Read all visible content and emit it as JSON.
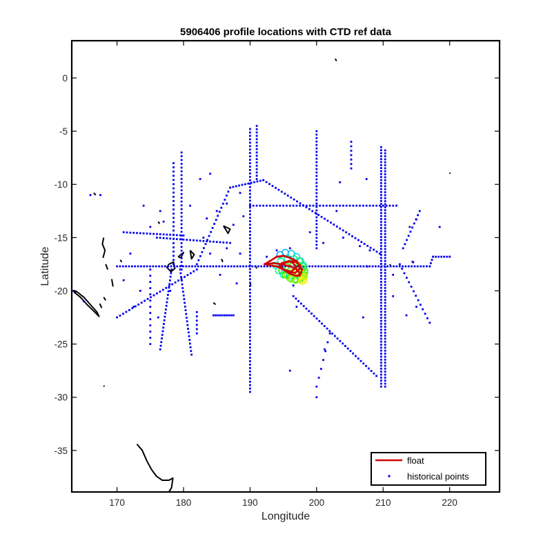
{
  "chart_data": {
    "type": "scatter",
    "title": "5906406 profile locations with CTD ref data",
    "xlabel": "Longitude",
    "ylabel": "Latitude",
    "xlim": [
      163.2,
      227.5
    ],
    "ylim": [
      -38.9,
      3.5
    ],
    "xticks": [
      "170",
      "180",
      "190",
      "200",
      "210",
      "220"
    ],
    "xtick_values": [
      170,
      180,
      190,
      200,
      210,
      220
    ],
    "yticks": [
      "0",
      "-5",
      "-10",
      "-15",
      "-20",
      "-25",
      "-30",
      "-35"
    ],
    "ytick_values": [
      0,
      -5,
      -10,
      -15,
      -20,
      -25,
      -30,
      -35
    ],
    "grid": false,
    "legend": {
      "placement": "bottom-right",
      "entries": [
        "float",
        "historical points"
      ]
    },
    "colors": {
      "float": "#d40000",
      "historical": "#0000ee",
      "coast": "#000000",
      "axes": "#000000"
    },
    "series": [
      {
        "name": "historical points",
        "segments": [
          {
            "from": [
              190,
              -4.8
            ],
            "to": [
              190,
              -29.5
            ],
            "step": 0.32
          },
          {
            "from": [
              191,
              -4.5
            ],
            "to": [
              191,
              -9.5
            ],
            "step": 0.32
          },
          {
            "from": [
              200,
              -5
            ],
            "to": [
              200,
              -16
            ],
            "step": 0.32
          },
          {
            "from": [
              209.7,
              -6.5
            ],
            "to": [
              209.7,
              -29
            ],
            "step": 0.28
          },
          {
            "from": [
              210.3,
              -6.8
            ],
            "to": [
              210.3,
              -29
            ],
            "step": 0.28
          },
          {
            "from": [
              179.7,
              -7
            ],
            "to": [
              179.7,
              -18
            ],
            "step": 0.35
          },
          {
            "from": [
              178.5,
              -8
            ],
            "to": [
              178.5,
              -17.5
            ],
            "step": 0.4
          },
          {
            "from": [
              170,
              -17.7
            ],
            "to": [
              217,
              -17.7
            ],
            "step": 0.45
          },
          {
            "from": [
              217,
              -17.7
            ],
            "to": [
              217.5,
              -16.8
            ],
            "step": 0.3
          },
          {
            "from": [
              217.5,
              -16.8
            ],
            "to": [
              220,
              -16.8
            ],
            "step": 0.4
          },
          {
            "from": [
              187,
              -10.3
            ],
            "to": [
              192,
              -9.6
            ],
            "step": 0.45
          },
          {
            "from": [
              192,
              -9.6
            ],
            "to": [
              209.5,
              -16.5
            ],
            "step": 0.5
          },
          {
            "from": [
              190,
              -12
            ],
            "to": [
              212,
              -12
            ],
            "step": 0.5
          },
          {
            "from": [
              182,
              -17.5
            ],
            "to": [
              187,
              -10.3
            ],
            "step": 0.45
          },
          {
            "from": [
              182,
              -18
            ],
            "to": [
              170,
              -22.5
            ],
            "step": 0.5
          },
          {
            "from": [
              178.2,
              -18
            ],
            "to": [
              176.5,
              -25.5
            ],
            "step": 0.35
          },
          {
            "from": [
              179.5,
              -18
            ],
            "to": [
              181.2,
              -26
            ],
            "step": 0.35
          },
          {
            "from": [
              196.5,
              -20.5
            ],
            "to": [
              209,
              -28
            ],
            "step": 0.45
          },
          {
            "from": [
              212.5,
              -17.5
            ],
            "to": [
              217,
              -23
            ],
            "step": 0.55
          },
          {
            "from": [
              175,
              -18
            ],
            "to": [
              175,
              -25
            ],
            "step": 0.6
          },
          {
            "from": [
              176,
              -15
            ],
            "to": [
              187,
              -15.5
            ],
            "step": 0.5
          },
          {
            "from": [
              171,
              -14.5
            ],
            "to": [
              180,
              -14.8
            ],
            "step": 0.5
          },
          {
            "from": [
              184.5,
              -22.3
            ],
            "to": [
              187.5,
              -22.3
            ],
            "step": 0.35
          },
          {
            "from": [
              182,
              -22
            ],
            "to": [
              182,
              -24
            ],
            "step": 0.4
          },
          {
            "from": [
              213,
              -16
            ],
            "to": [
              215.5,
              -12.5
            ],
            "step": 0.5
          },
          {
            "from": [
              205.2,
              -6
            ],
            "to": [
              205.2,
              -8.5
            ],
            "step": 0.4
          },
          {
            "from": [
              200,
              -29
            ],
            "to": [
              202,
              -24
            ],
            "step": 0.9
          }
        ],
        "points": [
          [
            166,
            -11
          ],
          [
            167.5,
            -11
          ],
          [
            163.5,
            -20
          ],
          [
            165,
            -21
          ],
          [
            171,
            -19
          ],
          [
            172,
            -16.5
          ],
          [
            173.5,
            -20
          ],
          [
            174,
            -12
          ],
          [
            175,
            -14
          ],
          [
            176.5,
            -12.5
          ],
          [
            177,
            -13.5
          ],
          [
            181,
            -12
          ],
          [
            183,
            -15
          ],
          [
            183.5,
            -13.2
          ],
          [
            184,
            -16.5
          ],
          [
            185,
            -12.5
          ],
          [
            185.5,
            -18.5
          ],
          [
            186.5,
            -16
          ],
          [
            187.5,
            -13.8
          ],
          [
            188.5,
            -16.5
          ],
          [
            189,
            -13
          ],
          [
            188,
            -19.3
          ],
          [
            192.5,
            -16.8
          ],
          [
            194,
            -16.2
          ],
          [
            196,
            -16
          ],
          [
            199,
            -14.5
          ],
          [
            201,
            -15.5
          ],
          [
            203,
            -12.5
          ],
          [
            204,
            -15
          ],
          [
            206.5,
            -15.8
          ],
          [
            208,
            -16.2
          ],
          [
            212,
            -12
          ],
          [
            214,
            -14
          ],
          [
            215,
            -13.3
          ],
          [
            214.5,
            -17.3
          ],
          [
            218.5,
            -14
          ],
          [
            220,
            -16.8
          ],
          [
            201.2,
            -25.5
          ],
          [
            200,
            -30
          ],
          [
            182.5,
            -9.5
          ],
          [
            184,
            -9
          ],
          [
            186.5,
            -11.8
          ],
          [
            188.5,
            -10.8
          ],
          [
            196.5,
            -19.5
          ],
          [
            197,
            -21.5
          ],
          [
            207,
            -22.5
          ],
          [
            211.5,
            -18.5
          ],
          [
            213.5,
            -22.3
          ],
          [
            215,
            -21.5
          ],
          [
            196,
            -27.5
          ],
          [
            203.5,
            -9.8
          ],
          [
            207.5,
            -9.5
          ],
          [
            211.5,
            -20.5
          ],
          [
            178,
            -20
          ],
          [
            172.5,
            -21.5
          ],
          [
            176.2,
            -22.5
          ]
        ]
      },
      {
        "name": "float",
        "x": [
          192.2,
          193.0,
          194.0,
          195.0,
          196.0,
          197.0,
          197.5,
          197.8,
          197.6,
          197.0,
          196.0,
          195.0,
          194.5,
          195.5,
          196.5,
          197.2,
          197.5,
          196.8,
          195.5,
          194.5,
          194.8,
          195.8,
          196.5,
          196.9,
          196.2,
          195.0,
          194.0,
          193.0,
          192.4,
          193.5,
          194.8,
          196.0,
          197.0,
          197.6,
          197.4
        ],
        "y": [
          -17.5,
          -17.2,
          -16.8,
          -16.7,
          -16.9,
          -17.2,
          -17.6,
          -18.0,
          -18.4,
          -18.6,
          -18.4,
          -18.0,
          -17.6,
          -17.3,
          -17.2,
          -17.4,
          -17.9,
          -18.3,
          -18.2,
          -17.8,
          -17.4,
          -17.2,
          -17.4,
          -17.8,
          -18.2,
          -18.0,
          -17.7,
          -17.6,
          -17.5,
          -17.4,
          -17.5,
          -17.7,
          -18.0,
          -18.4,
          -18.6
        ]
      }
    ],
    "float_history_circles": {
      "x": [
        194.5,
        195.3,
        196.2,
        197.0,
        197.6,
        197.9,
        197.6,
        197.0,
        196.0,
        195.0,
        194.3,
        193.8,
        194.6,
        195.6,
        196.6,
        197.4,
        198.0,
        198.2,
        198.0,
        197.5,
        196.8,
        196.0,
        195.3,
        194.8,
        195.5,
        196.5,
        197.3,
        197.9,
        198.2,
        198.1,
        197.6,
        196.9,
        196.2,
        195.6,
        196.2,
        197.0,
        197.7,
        198.1,
        198.1,
        197.8
      ],
      "y": [
        -16.6,
        -16.4,
        -16.5,
        -16.8,
        -17.2,
        -17.7,
        -18.2,
        -18.5,
        -18.6,
        -18.5,
        -18.1,
        -17.6,
        -17.2,
        -17.0,
        -17.0,
        -17.2,
        -17.6,
        -18.1,
        -18.5,
        -18.8,
        -18.9,
        -18.8,
        -18.5,
        -18.1,
        -17.7,
        -17.5,
        -17.6,
        -17.9,
        -18.3,
        -18.6,
        -18.9,
        -19.0,
        -18.9,
        -18.6,
        -18.3,
        -18.2,
        -18.4,
        -18.7,
        -19.0,
        -19.1
      ]
    },
    "coastlines": [
      [
        [
          163.5,
          -20.1
        ],
        [
          164.5,
          -20.6
        ],
        [
          165.5,
          -21.3
        ],
        [
          166.5,
          -21.9
        ],
        [
          167.3,
          -22.4
        ],
        [
          167.0,
          -22.0
        ],
        [
          166.0,
          -21.3
        ],
        [
          165.0,
          -20.6
        ],
        [
          164.0,
          -20.1
        ],
        [
          163.5,
          -20.1
        ]
      ],
      [
        [
          173.0,
          -34.4
        ],
        [
          173.8,
          -35.0
        ],
        [
          174.5,
          -36.0
        ],
        [
          175.2,
          -36.8
        ],
        [
          175.9,
          -37.4
        ],
        [
          176.8,
          -37.8
        ],
        [
          177.8,
          -37.8
        ],
        [
          178.4,
          -37.6
        ],
        [
          178.2,
          -38.5
        ],
        [
          177.8,
          -38.9
        ]
      ],
      [
        [
          177.8,
          -17.5
        ],
        [
          178.5,
          -17.3
        ],
        [
          178.7,
          -17.9
        ],
        [
          178.1,
          -18.2
        ],
        [
          177.5,
          -17.8
        ],
        [
          177.8,
          -17.5
        ]
      ],
      [
        [
          179.2,
          -16.8
        ],
        [
          180.0,
          -16.4
        ],
        [
          179.6,
          -16.9
        ],
        [
          179.2,
          -16.8
        ]
      ],
      [
        [
          181.0,
          -16.2
        ],
        [
          181.6,
          -16.6
        ],
        [
          181.2,
          -17.0
        ],
        [
          181.0,
          -16.2
        ]
      ],
      [
        [
          186.0,
          -13.9
        ],
        [
          187.0,
          -14.2
        ],
        [
          186.7,
          -14.6
        ],
        [
          186.0,
          -13.9
        ]
      ],
      [
        [
          168.0,
          -15.0
        ],
        [
          167.8,
          -15.6
        ],
        [
          168.2,
          -16.2
        ],
        [
          167.9,
          -16.9
        ]
      ],
      [
        [
          168.3,
          -17.5
        ],
        [
          168.6,
          -18.0
        ]
      ],
      [
        [
          169.2,
          -18.9
        ],
        [
          169.4,
          -19.6
        ]
      ],
      [
        [
          167.4,
          -21.2
        ],
        [
          167.7,
          -21.6
        ]
      ],
      [
        [
          168.0,
          -20.6
        ],
        [
          168.3,
          -20.9
        ]
      ],
      [
        [
          184.5,
          -21.1
        ],
        [
          184.8,
          -21.3
        ]
      ],
      [
        [
          166.5,
          -10.8
        ],
        [
          166.8,
          -11.0
        ]
      ],
      [
        [
          202.8,
          1.8
        ],
        [
          203.0,
          1.6
        ]
      ],
      [
        [
          220.0,
          -8.9
        ],
        [
          220.1,
          -9.0
        ]
      ],
      [
        [
          168.0,
          -28.9
        ],
        [
          168.1,
          -29.0
        ]
      ],
      [
        [
          190.0,
          -19.2
        ],
        [
          190.1,
          -19.5
        ]
      ],
      [
        [
          185.7,
          -17.0
        ],
        [
          185.9,
          -17.3
        ]
      ],
      [
        [
          190.8,
          -17.6
        ],
        [
          191.0,
          -17.9
        ]
      ],
      [
        [
          211.0,
          -17.5
        ],
        [
          211.2,
          -17.7
        ]
      ],
      [
        [
          207.5,
          -17.6
        ],
        [
          207.7,
          -17.8
        ]
      ],
      [
        [
          214.3,
          -17.2
        ],
        [
          214.6,
          -17.4
        ]
      ],
      [
        [
          170.5,
          -17.1
        ],
        [
          170.7,
          -17.3
        ]
      ],
      [
        [
          176.2,
          -13.5
        ],
        [
          176.4,
          -13.7
        ]
      ]
    ]
  }
}
